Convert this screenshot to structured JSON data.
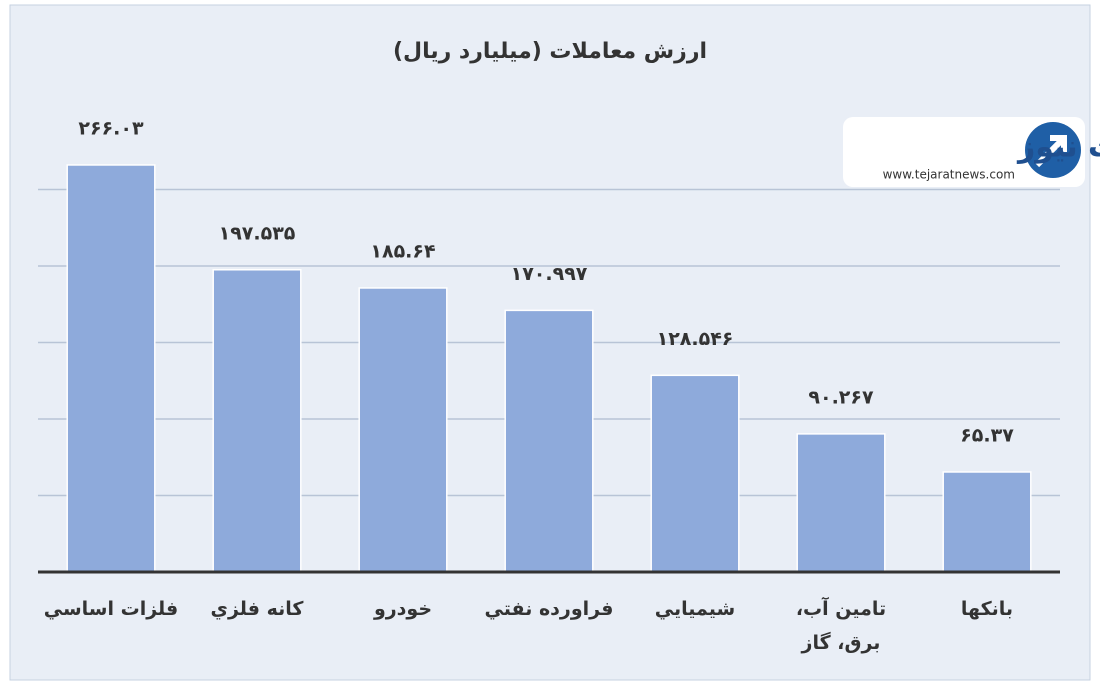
{
  "chart_data": {
    "type": "bar",
    "title": "ارزش معاملات  (میلیارد ریال)",
    "categories": [
      "فلزات اساسي",
      "کانه فلزي",
      "خودرو",
      "فراورده نفتي",
      "شيميايي",
      "تامين آب، برق، گاز",
      "بانکها"
    ],
    "values": [
      266.03,
      197.535,
      185.64,
      170.997,
      128.546,
      90.267,
      65.37
    ],
    "value_labels": [
      "۲۶۶.۰۳",
      "۱۹۷.۵۳۵",
      "۱۸۵.۶۴",
      "۱۷۰.۹۹۷",
      "۱۲۸.۵۴۶",
      "۹۰.۲۶۷",
      "۶۵.۳۷"
    ],
    "color": "#8eaadb",
    "ylim": [
      0,
      300
    ],
    "yticks": [
      50,
      100,
      150,
      200,
      250
    ],
    "grid": true
  },
  "logo": {
    "name": "تجارت نیوز",
    "url": "www.tejaratnews.com"
  }
}
